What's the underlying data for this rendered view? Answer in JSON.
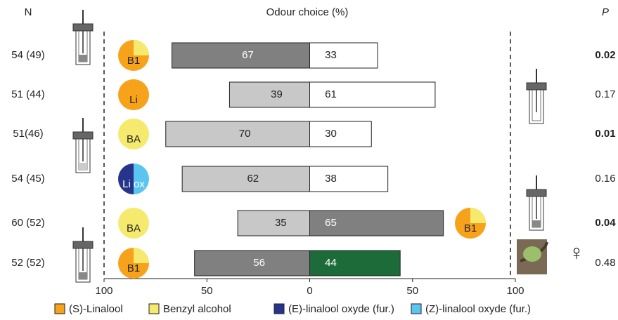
{
  "chart_data": {
    "type": "diverging-bar",
    "title": "Odour choice (%)",
    "n_label": "N",
    "p_label": "P",
    "categories": [
      "54 (49)",
      "51 (44)",
      "51(46)",
      "54 (45)",
      "60 (52)",
      "52 (52)"
    ],
    "p_values": [
      "0.02",
      "0.17",
      "0.01",
      "0.16",
      "0.04",
      "0.48"
    ],
    "p_bold": [
      true,
      false,
      true,
      false,
      true,
      false
    ],
    "stimuli": [
      {
        "label": "B1",
        "colors": [
          "#f7a21b",
          "#f5ea6e"
        ]
      },
      {
        "label": "Li",
        "colors": [
          "#f7a21b"
        ]
      },
      {
        "label": "BA",
        "colors": [
          "#f5ea6e"
        ]
      },
      {
        "label": "Li ox",
        "colors": [
          "#27348b",
          "#5bc5f2"
        ]
      },
      {
        "label": "BA",
        "colors": [
          "#f5ea6e"
        ]
      },
      {
        "label": "B1",
        "colors": [
          "#f7a21b",
          "#f5ea6e"
        ]
      }
    ],
    "right_stimulus": {
      "row": 4,
      "label": "B1",
      "colors": [
        "#f7a21b",
        "#f5ea6e"
      ]
    },
    "female_symbol": "♀",
    "series": [
      {
        "side": "left",
        "values": [
          67,
          39,
          70,
          62,
          35,
          56
        ],
        "colors": [
          "#808080",
          "#c8c8c8",
          "#c8c8c8",
          "#c8c8c8",
          "#c8c8c8",
          "#808080"
        ],
        "text_colors": [
          "#ffffff",
          "#222222",
          "#222222",
          "#222222",
          "#222222",
          "#ffffff"
        ]
      },
      {
        "side": "right",
        "values": [
          33,
          61,
          30,
          38,
          65,
          44
        ],
        "colors": [
          "#ffffff",
          "#ffffff",
          "#ffffff",
          "#ffffff",
          "#808080",
          "#1e6b3a"
        ],
        "text_colors": [
          "#222222",
          "#222222",
          "#222222",
          "#222222",
          "#ffffff",
          "#ffffff"
        ]
      }
    ],
    "xlim": [
      -100,
      100
    ],
    "xticks": [
      {
        "value": -100,
        "label": "100"
      },
      {
        "value": -50,
        "label": "50"
      },
      0,
      50,
      100
    ],
    "legend": [
      {
        "name": "(S)-Linalool",
        "color": "#f7a21b"
      },
      {
        "name": "Benzyl alcohol",
        "color": "#f5ea6e"
      },
      {
        "name": "(E)-linalool oxyde (fur.)",
        "color": "#27348b"
      },
      {
        "name": "(Z)-linalool oxyde (fur.)",
        "color": "#5bc5f2"
      }
    ]
  }
}
